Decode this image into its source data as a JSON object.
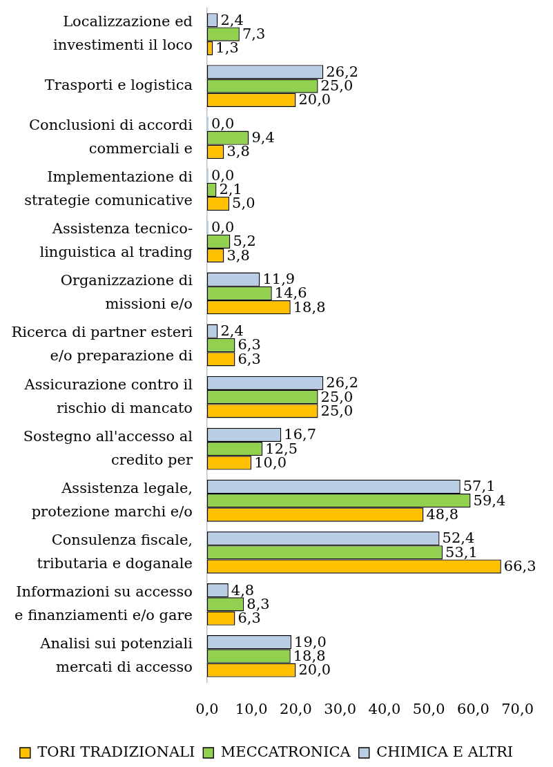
{
  "chart_data": {
    "type": "bar",
    "orientation": "horizontal",
    "categories": [
      "Localizzazione ed investimenti il loco",
      "Trasporti e logistica",
      "Conclusioni di accordi commerciali e",
      "Implementazione di strategie comunicative",
      "Assistenza tecnico-linguistica al trading",
      "Organizzazione di missioni e/o",
      "Ricerca di partner esteri e/o preparazione di",
      "Assicurazione contro il rischio di mancato",
      "Sostegno all'accesso al credito per",
      "Assistenza legale, protezione marchi e/o",
      "Consulenza fiscale, tributaria e doganale",
      "Informazioni su accesso e finanziamenti e/o gare",
      "Analisi sui potenziali mercati di accesso"
    ],
    "series": [
      {
        "name": "TORI TRADIZIONALI",
        "color": "#ffc000",
        "values": [
          1.3,
          20.0,
          3.8,
          5.0,
          3.8,
          18.8,
          6.3,
          25.0,
          10.0,
          48.8,
          66.3,
          6.3,
          20.0
        ],
        "value_labels": [
          "1,3",
          "20,0",
          "3,8",
          "5,0",
          "3,8",
          "18,8",
          "6,3",
          "25,0",
          "10,0",
          "48,8",
          "66,3",
          "6,3",
          "20,0"
        ]
      },
      {
        "name": "MECCATRONICA",
        "color": "#92d050",
        "values": [
          7.3,
          25.0,
          9.4,
          2.1,
          5.2,
          14.6,
          6.3,
          25.0,
          12.5,
          59.4,
          53.1,
          8.3,
          18.8
        ],
        "value_labels": [
          "7,3",
          "25,0",
          "9,4",
          "2,1",
          "5,2",
          "14,6",
          "6,3",
          "25,0",
          "12,5",
          "59,4",
          "53,1",
          "8,3",
          "18,8"
        ]
      },
      {
        "name": "CHIMICA E ALTRI",
        "color": "#b9cde5",
        "values": [
          2.4,
          26.2,
          0,
          0,
          0,
          11.9,
          2.4,
          26.2,
          16.7,
          57.1,
          52.4,
          4.8,
          19.0
        ],
        "value_labels": [
          "2,4",
          "26,2",
          "0,0",
          "0,0",
          "0,0",
          "11,9",
          "2,4",
          "26,2",
          "16,7",
          "57,1",
          "52,4",
          "4,8",
          "19,0"
        ]
      }
    ],
    "xlim": [
      0,
      70
    ],
    "xticks": [
      {
        "value": 0,
        "label": "0,0"
      },
      {
        "value": 10,
        "label": "10,0"
      },
      {
        "value": 20,
        "label": "20,0"
      },
      {
        "value": 30,
        "label": "30,0"
      },
      {
        "value": 40,
        "label": "40,0"
      },
      {
        "value": 50,
        "label": "50,0"
      },
      {
        "value": 60,
        "label": "60,0"
      },
      {
        "value": 70,
        "label": "70,0"
      }
    ],
    "grid": false,
    "legend": "bottom"
  }
}
